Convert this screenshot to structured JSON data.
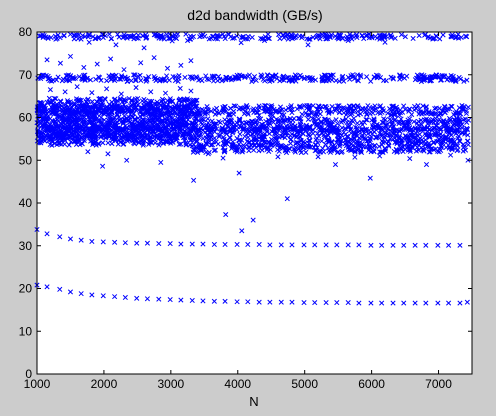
{
  "chart_data": {
    "type": "scatter",
    "title": "d2d bandwidth (GB/s)",
    "xlabel": "N",
    "ylabel": "",
    "xlim": [
      1000,
      7500
    ],
    "ylim": [
      0,
      80
    ],
    "xticks": [
      "1000",
      "2000",
      "3000",
      "4000",
      "5000",
      "6000",
      "7000"
    ],
    "yticks": [
      "0",
      "10",
      "20",
      "30",
      "40",
      "50",
      "60",
      "70",
      "80"
    ],
    "grid": false,
    "legend": "none",
    "marker": "x",
    "colors": {
      "marker": "#0000ff",
      "figure_bg": "#cccccc",
      "axes_bg": "#ffffff"
    },
    "series": [
      {
        "values": [
          [
            1000,
            20.8
          ],
          [
            1150,
            20.4
          ],
          [
            1340,
            19.8
          ],
          [
            1500,
            19.2
          ],
          [
            1660,
            18.8
          ],
          [
            1820,
            18.5
          ],
          [
            1990,
            18.3
          ],
          [
            2160,
            18.1
          ],
          [
            2320,
            17.9
          ],
          [
            2490,
            17.7
          ],
          [
            2650,
            17.6
          ],
          [
            2820,
            17.5
          ],
          [
            2990,
            17.4
          ],
          [
            3150,
            17.3
          ],
          [
            3320,
            17.2
          ],
          [
            3480,
            17.1
          ],
          [
            3650,
            17.0
          ],
          [
            3810,
            17.0
          ],
          [
            3990,
            16.9
          ],
          [
            4150,
            16.9
          ],
          [
            4320,
            16.8
          ],
          [
            4480,
            16.8
          ],
          [
            4650,
            16.8
          ],
          [
            4810,
            16.8
          ],
          [
            4990,
            16.7
          ],
          [
            5150,
            16.7
          ],
          [
            5320,
            16.7
          ],
          [
            5480,
            16.7
          ],
          [
            5650,
            16.7
          ],
          [
            5810,
            16.6
          ],
          [
            5990,
            16.6
          ],
          [
            6150,
            16.6
          ],
          [
            6320,
            16.6
          ],
          [
            6480,
            16.6
          ],
          [
            6650,
            16.6
          ],
          [
            6810,
            16.6
          ],
          [
            6990,
            16.6
          ],
          [
            7150,
            16.6
          ],
          [
            7320,
            16.6
          ],
          [
            7430,
            16.8
          ],
          [
            1000,
            33.8
          ],
          [
            1150,
            32.8
          ],
          [
            1340,
            32.1
          ],
          [
            1500,
            31.6
          ],
          [
            1660,
            31.3
          ],
          [
            1820,
            31.0
          ],
          [
            1990,
            30.9
          ],
          [
            2160,
            30.8
          ],
          [
            2320,
            30.7
          ],
          [
            2490,
            30.6
          ],
          [
            2650,
            30.6
          ],
          [
            2820,
            30.5
          ],
          [
            2990,
            30.5
          ],
          [
            3150,
            30.4
          ],
          [
            3320,
            30.4
          ],
          [
            3480,
            30.4
          ],
          [
            3650,
            30.3
          ],
          [
            3810,
            30.3
          ],
          [
            3990,
            30.3
          ],
          [
            4150,
            30.3
          ],
          [
            4320,
            30.3
          ],
          [
            4480,
            30.2
          ],
          [
            4650,
            30.2
          ],
          [
            4810,
            30.2
          ],
          [
            4990,
            30.2
          ],
          [
            5150,
            30.2
          ],
          [
            5320,
            30.2
          ],
          [
            5480,
            30.2
          ],
          [
            5650,
            30.2
          ],
          [
            5810,
            30.2
          ],
          [
            5990,
            30.1
          ],
          [
            6150,
            30.1
          ],
          [
            6320,
            30.1
          ],
          [
            6480,
            30.1
          ],
          [
            6650,
            30.1
          ],
          [
            6810,
            30.1
          ],
          [
            6990,
            30.1
          ],
          [
            7150,
            30.1
          ],
          [
            7320,
            30.1
          ],
          [
            3820,
            37.3
          ],
          [
            4060,
            33.5
          ],
          [
            4230,
            36.0
          ],
          [
            4740,
            41.0
          ],
          [
            4020,
            47.0
          ],
          [
            3340,
            45.3
          ],
          [
            5980,
            45.8
          ],
          [
            2340,
            50.0
          ],
          [
            2850,
            49.5
          ],
          [
            5460,
            49.0
          ],
          [
            6820,
            49.0
          ],
          [
            6570,
            50.4
          ],
          [
            7440,
            50.0
          ],
          [
            1980,
            48.6
          ],
          [
            1760,
            52.0
          ],
          [
            2060,
            51.5
          ],
          [
            3560,
            51.5
          ],
          [
            3780,
            50.5
          ],
          [
            4600,
            50.8
          ],
          [
            5200,
            50.8
          ],
          [
            5750,
            50.7
          ],
          [
            6120,
            51.0
          ],
          [
            7180,
            51.2
          ],
          [
            1100,
            79.0
          ],
          [
            1300,
            78.5
          ],
          [
            1550,
            79.2
          ],
          [
            1780,
            77.6
          ],
          [
            1990,
            78.7
          ],
          [
            2180,
            77.0
          ],
          [
            2370,
            79.0
          ],
          [
            2600,
            76.3
          ],
          [
            2820,
            79.0
          ],
          [
            3020,
            77.9
          ],
          [
            3250,
            78.0
          ],
          [
            4050,
            77.5
          ],
          [
            4400,
            78.0
          ],
          [
            5050,
            77.0
          ],
          [
            5650,
            78.0
          ],
          [
            6200,
            77.6
          ],
          [
            1150,
            73.5
          ],
          [
            1350,
            72.7
          ],
          [
            1500,
            74.3
          ],
          [
            1700,
            71.7
          ],
          [
            1900,
            72.5
          ],
          [
            2100,
            73.7
          ],
          [
            2300,
            71.2
          ],
          [
            2550,
            72.8
          ],
          [
            2750,
            74.0
          ],
          [
            2950,
            71.5
          ],
          [
            3150,
            72.2
          ],
          [
            3300,
            73.3
          ],
          [
            1200,
            66.5
          ],
          [
            1420,
            66.0
          ],
          [
            1600,
            67.2
          ],
          [
            1820,
            65.8
          ],
          [
            2040,
            66.7
          ],
          [
            2260,
            65.5
          ],
          [
            2480,
            67.0
          ],
          [
            2700,
            66.0
          ],
          [
            2920,
            65.7
          ],
          [
            3140,
            66.8
          ],
          [
            3300,
            66.2
          ],
          [
            1700,
            62.0
          ],
          [
            2300,
            63.0
          ],
          [
            2950,
            61.8
          ],
          [
            1450,
            60.0
          ],
          [
            2200,
            60.5
          ],
          [
            2700,
            60.8
          ],
          [
            3100,
            59.8
          ],
          [
            1250,
            55.3
          ],
          [
            1880,
            55.0
          ],
          [
            2450,
            55.4
          ],
          [
            3000,
            55.1
          ]
        ]
      }
    ],
    "bands": [
      {
        "y_min": 78.3,
        "y_max": 79.5,
        "x_min": 1000,
        "x_max": 7450
      },
      {
        "y_min": 68.4,
        "y_max": 70.0,
        "x_min": 1000,
        "x_max": 7450
      },
      {
        "y_min": 60.5,
        "y_max": 62.8,
        "x_min": 1000,
        "x_max": 7450
      },
      {
        "y_min": 57.0,
        "y_max": 59.8,
        "x_min": 1000,
        "x_max": 7450
      },
      {
        "y_min": 55.5,
        "y_max": 57.6,
        "x_min": 1000,
        "x_max": 7450
      },
      {
        "y_min": 53.5,
        "y_max": 55.5,
        "x_min": 1000,
        "x_max": 7450
      },
      {
        "y_min": 51.8,
        "y_max": 53.5,
        "x_min": 3300,
        "x_max": 7450
      },
      {
        "y_min": 55.0,
        "y_max": 64.5,
        "x_min": 1000,
        "x_max": 3400
      }
    ]
  }
}
